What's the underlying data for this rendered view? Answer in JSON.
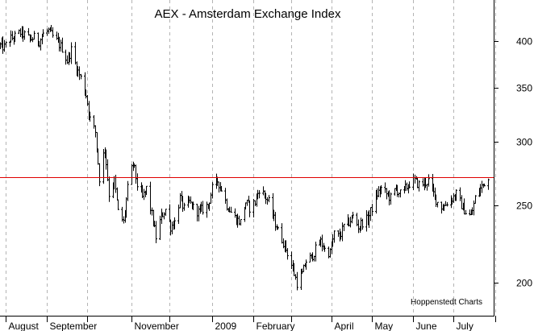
{
  "chart_data": {
    "type": "ohlc",
    "title": "AEX - Amsterdam Exchange Index",
    "credit": "Hoppenstedt Charts",
    "xlabel": "",
    "ylabel": "",
    "y_scale": "log",
    "ylim": [
      182,
      450
    ],
    "y_ticks": [
      200,
      250,
      300,
      350,
      400
    ],
    "grid": "vertical-dashed",
    "reference_line": {
      "value": 271,
      "color": "#e00000"
    },
    "x_start": "2008-07-28",
    "x_end": "2009-07-31",
    "x_ticks": [
      {
        "label": "August",
        "date": "2008-08-01"
      },
      {
        "label": "September",
        "date": "2008-09-01"
      },
      {
        "label": "",
        "date": "2008-10-01"
      },
      {
        "label": "November",
        "date": "2008-11-03"
      },
      {
        "label": "",
        "date": "2008-12-01"
      },
      {
        "label": "2009",
        "date": "2009-01-02"
      },
      {
        "label": "February",
        "date": "2009-02-02"
      },
      {
        "label": "",
        "date": "2009-03-02"
      },
      {
        "label": "April",
        "date": "2009-04-01"
      },
      {
        "label": "May",
        "date": "2009-05-01"
      },
      {
        "label": "June",
        "date": "2009-06-01"
      },
      {
        "label": "July",
        "date": "2009-07-01"
      },
      {
        "label": "",
        "date": "2009-08-01"
      }
    ],
    "series": [
      {
        "values": [
          [
            "2008-07-28",
            395
          ],
          [
            "2008-07-31",
            393
          ],
          [
            "2008-08-04",
            402
          ],
          [
            "2008-08-08",
            405
          ],
          [
            "2008-08-12",
            410
          ],
          [
            "2008-08-15",
            407
          ],
          [
            "2008-08-19",
            402
          ],
          [
            "2008-08-22",
            404
          ],
          [
            "2008-08-26",
            400
          ],
          [
            "2008-08-29",
            408
          ],
          [
            "2008-09-02",
            412
          ],
          [
            "2008-09-05",
            405
          ],
          [
            "2008-09-09",
            398
          ],
          [
            "2008-09-12",
            392
          ],
          [
            "2008-09-16",
            378
          ],
          [
            "2008-09-19",
            390
          ],
          [
            "2008-09-23",
            370
          ],
          [
            "2008-09-26",
            360
          ],
          [
            "2008-09-30",
            343
          ],
          [
            "2008-10-03",
            320
          ],
          [
            "2008-10-07",
            308
          ],
          [
            "2008-10-10",
            270
          ],
          [
            "2008-10-14",
            295
          ],
          [
            "2008-10-17",
            258
          ],
          [
            "2008-10-21",
            268
          ],
          [
            "2008-10-24",
            245
          ],
          [
            "2008-10-28",
            238
          ],
          [
            "2008-10-31",
            262
          ],
          [
            "2008-11-04",
            282
          ],
          [
            "2008-11-07",
            265
          ],
          [
            "2008-11-11",
            255
          ],
          [
            "2008-11-14",
            262
          ],
          [
            "2008-11-18",
            243
          ],
          [
            "2008-11-21",
            228
          ],
          [
            "2008-11-25",
            242
          ],
          [
            "2008-11-28",
            247
          ],
          [
            "2008-12-02",
            235
          ],
          [
            "2008-12-05",
            238
          ],
          [
            "2008-12-09",
            255
          ],
          [
            "2008-12-12",
            247
          ],
          [
            "2008-12-16",
            252
          ],
          [
            "2008-12-19",
            248
          ],
          [
            "2008-12-23",
            245
          ],
          [
            "2008-12-30",
            250
          ],
          [
            "2009-01-02",
            262
          ],
          [
            "2009-01-06",
            268
          ],
          [
            "2009-01-09",
            262
          ],
          [
            "2009-01-13",
            250
          ],
          [
            "2009-01-16",
            245
          ],
          [
            "2009-01-20",
            240
          ],
          [
            "2009-01-23",
            238
          ],
          [
            "2009-01-27",
            252
          ],
          [
            "2009-01-30",
            248
          ],
          [
            "2009-02-03",
            252
          ],
          [
            "2009-02-06",
            262
          ],
          [
            "2009-02-10",
            257
          ],
          [
            "2009-02-13",
            252
          ],
          [
            "2009-02-17",
            240
          ],
          [
            "2009-02-20",
            232
          ],
          [
            "2009-02-24",
            225
          ],
          [
            "2009-02-27",
            218
          ],
          [
            "2009-03-03",
            208
          ],
          [
            "2009-03-06",
            200
          ],
          [
            "2009-03-10",
            205
          ],
          [
            "2009-03-13",
            213
          ],
          [
            "2009-03-17",
            215
          ],
          [
            "2009-03-20",
            220
          ],
          [
            "2009-03-24",
            225
          ],
          [
            "2009-03-27",
            220
          ],
          [
            "2009-03-31",
            218
          ],
          [
            "2009-04-03",
            230
          ],
          [
            "2009-04-07",
            228
          ],
          [
            "2009-04-10",
            235
          ],
          [
            "2009-04-14",
            238
          ],
          [
            "2009-04-17",
            242
          ],
          [
            "2009-04-21",
            235
          ],
          [
            "2009-04-24",
            238
          ],
          [
            "2009-04-28",
            240
          ],
          [
            "2009-05-01",
            248
          ],
          [
            "2009-05-05",
            258
          ],
          [
            "2009-05-08",
            262
          ],
          [
            "2009-05-12",
            258
          ],
          [
            "2009-05-15",
            255
          ],
          [
            "2009-05-19",
            262
          ],
          [
            "2009-05-22",
            258
          ],
          [
            "2009-05-26",
            262
          ],
          [
            "2009-05-29",
            266
          ],
          [
            "2009-06-02",
            268
          ],
          [
            "2009-06-05",
            265
          ],
          [
            "2009-06-09",
            266
          ],
          [
            "2009-06-12",
            268
          ],
          [
            "2009-06-16",
            258
          ],
          [
            "2009-06-19",
            252
          ],
          [
            "2009-06-23",
            248
          ],
          [
            "2009-06-26",
            252
          ],
          [
            "2009-06-30",
            255
          ],
          [
            "2009-07-03",
            258
          ],
          [
            "2009-07-07",
            250
          ],
          [
            "2009-07-10",
            245
          ],
          [
            "2009-07-14",
            242
          ],
          [
            "2009-07-17",
            255
          ],
          [
            "2009-07-21",
            262
          ],
          [
            "2009-07-24",
            267
          ],
          [
            "2009-07-27",
            269
          ]
        ]
      }
    ]
  }
}
